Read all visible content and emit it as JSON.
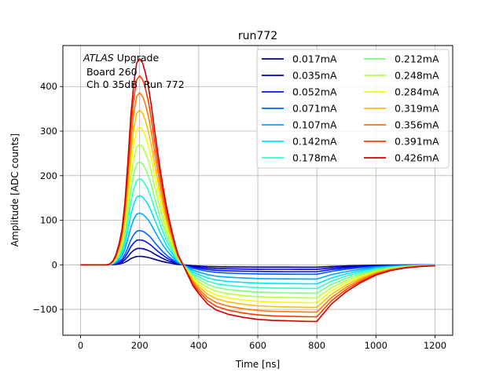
{
  "chart_data": {
    "type": "line",
    "title": "run772",
    "xlabel": "Time [ns]",
    "ylabel": "Amplitude [ADC counts]",
    "xlim": [
      -60,
      1260
    ],
    "ylim": [
      -158,
      492
    ],
    "xticks": [
      0,
      200,
      400,
      600,
      800,
      1000,
      1200
    ],
    "yticks": [
      -100,
      0,
      100,
      200,
      300,
      400
    ],
    "xtick_labels": [
      "0",
      "200",
      "400",
      "600",
      "800",
      "1000",
      "1200"
    ],
    "ytick_labels": [
      "−100",
      "0",
      "100",
      "200",
      "300",
      "400"
    ],
    "grid": true,
    "legend_position": "top-right",
    "legend_columns": 2,
    "annotation": {
      "line1_italic": "ATLAS",
      "line1_rest": " Upgrade",
      "line2": " Board 260",
      "line3": " Ch 0 35dB  Run 772"
    },
    "pulse_shape": {
      "x": [
        0,
        50,
        75,
        90,
        100,
        110,
        120,
        130,
        140,
        150,
        160,
        170,
        180,
        190,
        200,
        210,
        220,
        230,
        240,
        250,
        260,
        270,
        280,
        290,
        300,
        310,
        320,
        330,
        340,
        350,
        360,
        370,
        380,
        400,
        430,
        460,
        500,
        550,
        600,
        650,
        700,
        750,
        780,
        800,
        820,
        850,
        900,
        950,
        1000,
        1050,
        1100,
        1150,
        1200
      ],
      "y": [
        0,
        0,
        0,
        0,
        0.005,
        0.02,
        0.05,
        0.1,
        0.17,
        0.3,
        0.5,
        0.72,
        0.88,
        0.98,
        1.0,
        0.98,
        0.93,
        0.86,
        0.77,
        0.66,
        0.56,
        0.46,
        0.37,
        0.29,
        0.22,
        0.16,
        0.1,
        0.05,
        0.02,
        -0.01,
        -0.04,
        -0.07,
        -0.1,
        -0.14,
        -0.19,
        -0.22,
        -0.24,
        -0.255,
        -0.265,
        -0.27,
        -0.272,
        -0.274,
        -0.275,
        -0.275,
        -0.24,
        -0.19,
        -0.13,
        -0.085,
        -0.05,
        -0.028,
        -0.015,
        -0.008,
        -0.004
      ]
    },
    "series": [
      {
        "name": "0.017mA",
        "peak": 19,
        "color": "#00007f"
      },
      {
        "name": "0.035mA",
        "peak": 37,
        "color": "#0000c0"
      },
      {
        "name": "0.052mA",
        "peak": 56,
        "color": "#0010ff"
      },
      {
        "name": "0.071mA",
        "peak": 77,
        "color": "#0060ff"
      },
      {
        "name": "0.107mA",
        "peak": 116,
        "color": "#00a8ff"
      },
      {
        "name": "0.142mA",
        "peak": 155,
        "color": "#00e4f8"
      },
      {
        "name": "0.178mA",
        "peak": 193,
        "color": "#2cffca"
      },
      {
        "name": "0.212mA",
        "peak": 231,
        "color": "#7cff79"
      },
      {
        "name": "0.248mA",
        "peak": 270,
        "color": "#b5ff42"
      },
      {
        "name": "0.284mA",
        "peak": 309,
        "color": "#f1fc06"
      },
      {
        "name": "0.319mA",
        "peak": 347,
        "color": "#ffbd00"
      },
      {
        "name": "0.356mA",
        "peak": 386,
        "color": "#ff7a00"
      },
      {
        "name": "0.391mA",
        "peak": 424,
        "color": "#ff3b00"
      },
      {
        "name": "0.426mA",
        "peak": 462,
        "color": "#cc0000"
      }
    ]
  }
}
